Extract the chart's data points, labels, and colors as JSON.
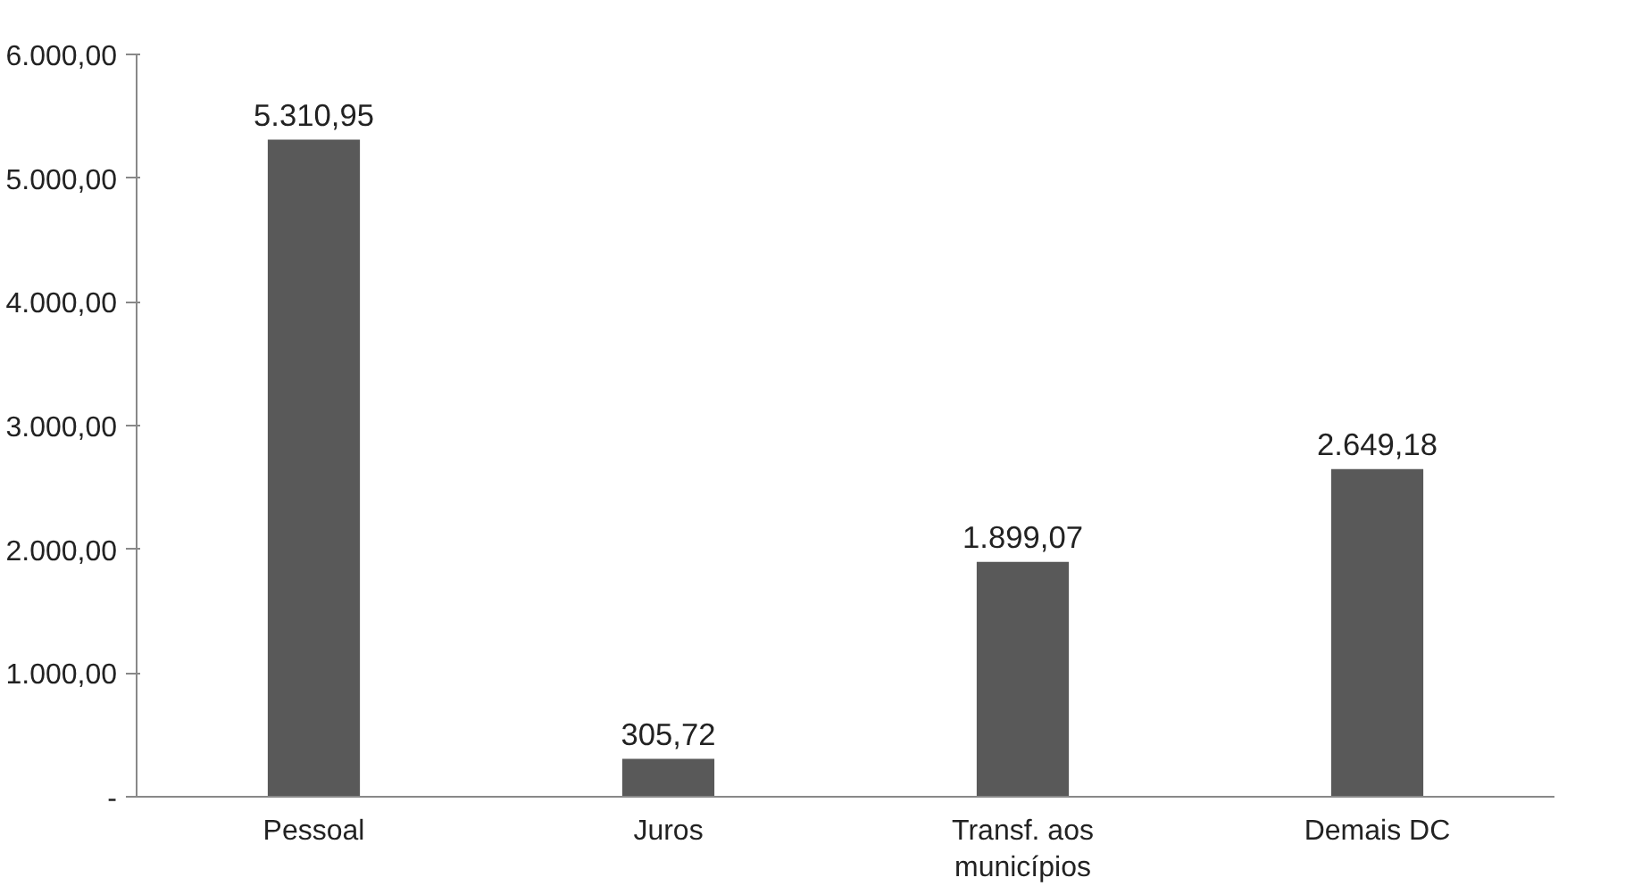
{
  "chart_data": {
    "type": "bar",
    "categories": [
      "Pessoal",
      "Juros",
      "Transf. aos municípios",
      "Demais DC"
    ],
    "values": [
      5310.95,
      305.72,
      1899.07,
      2649.18
    ],
    "value_labels": [
      "5.310,95",
      "305,72",
      "1.899,07",
      "2.649,18"
    ],
    "color": "#595959",
    "ylim": [
      0,
      6000
    ],
    "yticks": [
      {
        "value": 0,
        "label": "-"
      },
      {
        "value": 1000,
        "label": "1.000,00"
      },
      {
        "value": 2000,
        "label": "2.000,00"
      },
      {
        "value": 3000,
        "label": "3.000,00"
      },
      {
        "value": 4000,
        "label": "4.000,00"
      },
      {
        "value": 5000,
        "label": "5.000,00"
      },
      {
        "value": 6000,
        "label": "6.000,00"
      }
    ],
    "grid": false
  }
}
